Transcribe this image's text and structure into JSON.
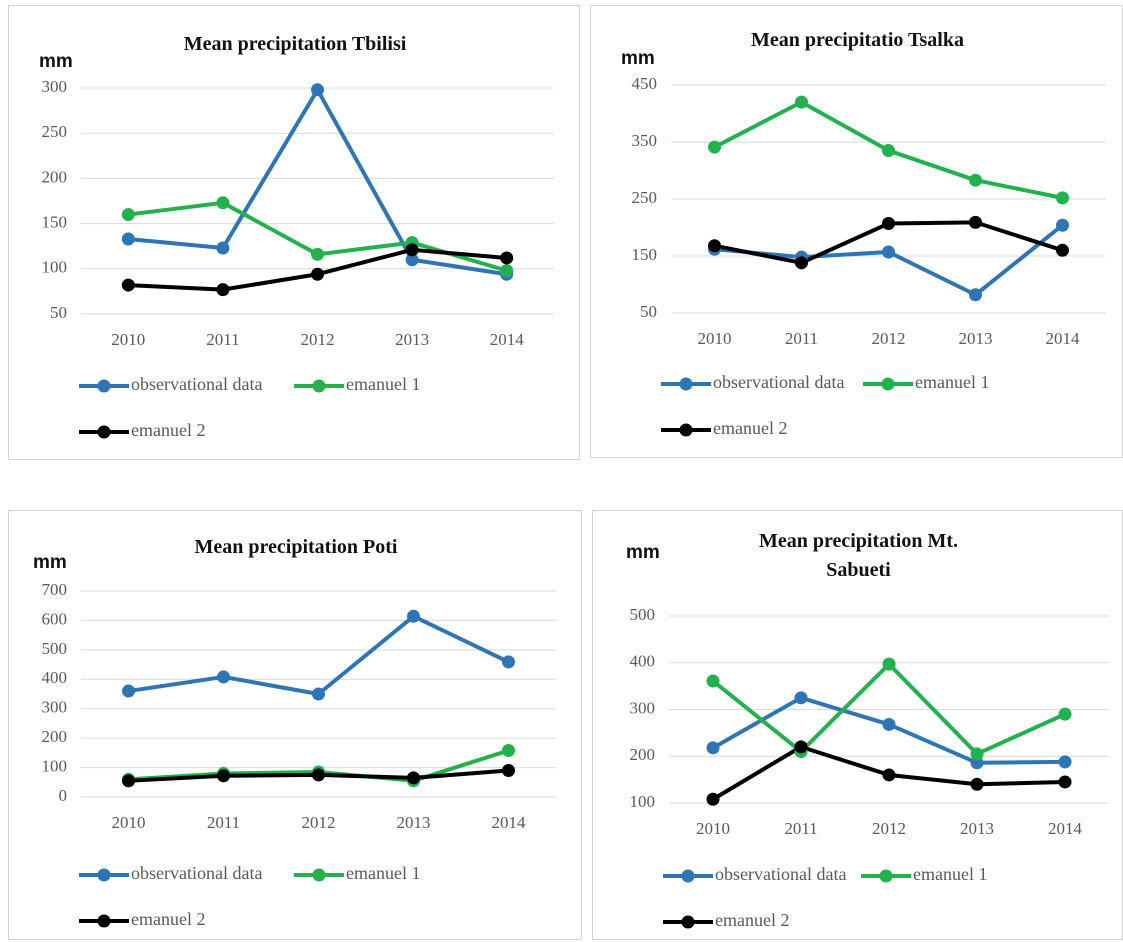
{
  "chart_data": [
    {
      "type": "line",
      "title": "Mean precipitation Tbilisi",
      "y_label": "mm",
      "categories": [
        "2010",
        "2011",
        "2012",
        "2013",
        "2014"
      ],
      "ylim": [
        50,
        300
      ],
      "yticks": [
        50,
        100,
        150,
        200,
        250,
        300
      ],
      "grid": true,
      "series": [
        {
          "name": "observational data",
          "color": "#2e75b6",
          "values": [
            133,
            123,
            298,
            110,
            94
          ]
        },
        {
          "name": "emanuel 1",
          "color": "#22b14c",
          "values": [
            160,
            173,
            116,
            129,
            98
          ]
        },
        {
          "name": "emanuel 2",
          "color": "#000000",
          "values": [
            82,
            77,
            94,
            121,
            112
          ]
        }
      ]
    },
    {
      "type": "line",
      "title": "Mean precipitatio Tsalka",
      "y_label": "mm",
      "categories": [
        "2010",
        "2011",
        "2012",
        "2013",
        "2014"
      ],
      "ylim": [
        50,
        450
      ],
      "yticks": [
        50,
        150,
        250,
        350,
        450
      ],
      "grid": true,
      "series": [
        {
          "name": "observational data",
          "color": "#2e75b6",
          "values": [
            162,
            148,
            157,
            82,
            204
          ]
        },
        {
          "name": "emanuel 1",
          "color": "#22b14c",
          "values": [
            341,
            420,
            335,
            283,
            252
          ]
        },
        {
          "name": "emanuel 2",
          "color": "#000000",
          "values": [
            168,
            138,
            207,
            209,
            160
          ]
        }
      ]
    },
    {
      "type": "line",
      "title": "Mean precipitation Poti",
      "y_label": "mm",
      "categories": [
        "2010",
        "2011",
        "2012",
        "2013",
        "2014"
      ],
      "ylim": [
        0,
        700
      ],
      "yticks": [
        0,
        100,
        200,
        300,
        400,
        500,
        600,
        700
      ],
      "grid": true,
      "series": [
        {
          "name": "observational data",
          "color": "#2e75b6",
          "values": [
            360,
            408,
            350,
            614,
            459
          ]
        },
        {
          "name": "emanuel 1",
          "color": "#22b14c",
          "values": [
            60,
            80,
            85,
            55,
            158
          ]
        },
        {
          "name": "emanuel 2",
          "color": "#000000",
          "values": [
            55,
            72,
            75,
            65,
            90
          ]
        }
      ]
    },
    {
      "type": "line",
      "title": "Mean precipitation Mt. Sabueti",
      "y_label": "mm",
      "categories": [
        "2010",
        "2011",
        "2012",
        "2013",
        "2014"
      ],
      "ylim": [
        100,
        500
      ],
      "yticks": [
        100,
        200,
        300,
        400,
        500
      ],
      "grid": true,
      "series": [
        {
          "name": "observational data",
          "color": "#2e75b6",
          "values": [
            218,
            325,
            268,
            186,
            188
          ]
        },
        {
          "name": "emanuel 1",
          "color": "#22b14c",
          "values": [
            361,
            210,
            397,
            205,
            290
          ]
        },
        {
          "name": "emanuel 2",
          "color": "#000000",
          "values": [
            108,
            220,
            160,
            140,
            145
          ]
        }
      ]
    }
  ]
}
